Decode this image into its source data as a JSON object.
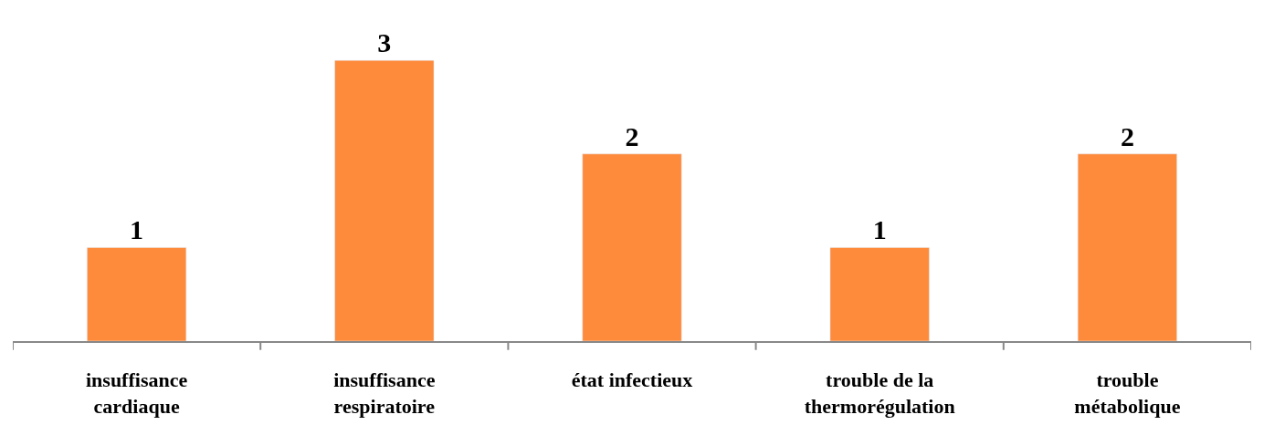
{
  "chart_data": {
    "type": "bar",
    "categories": [
      "insuffisance cardiaque",
      "insuffisance respiratoire",
      "état infectieux",
      "trouble de la thermorégulation",
      "trouble métabolique"
    ],
    "values": [
      1,
      3,
      2,
      1,
      2
    ],
    "color": "#fe8a3b",
    "data_labels": true
  }
}
